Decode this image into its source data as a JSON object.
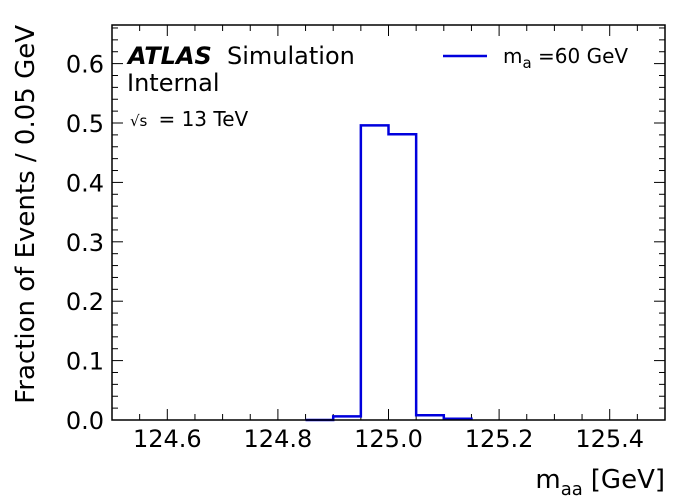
{
  "chart_data": {
    "type": "line",
    "drawstyle": "step",
    "title": "",
    "xlabel": "m",
    "xlabel_sub": "aa",
    "xlabel_unit": "[GeV]",
    "ylabel": "Fraction of Events / 0.05 GeV",
    "xlim": [
      124.5,
      125.5
    ],
    "ylim": [
      0,
      0.665
    ],
    "xticks": [
      124.6,
      124.8,
      125.0,
      125.2,
      125.4
    ],
    "xtick_labels": [
      "124.6",
      "124.8",
      "125.0",
      "125.2",
      "125.4"
    ],
    "yticks": [
      0,
      0.1,
      0.2,
      0.3,
      0.4,
      0.5,
      0.6
    ],
    "ytick_labels": [
      "0.0",
      "0.1",
      "0.2",
      "0.3",
      "0.4",
      "0.5",
      "0.6"
    ],
    "grid": false,
    "legend_position": "top-right",
    "series": [
      {
        "name": "m_a =60 GeV",
        "color": "#0000dd",
        "bin_edges": [
          124.5,
          124.55,
          124.6,
          124.65,
          124.7,
          124.75,
          124.8,
          124.85,
          124.9,
          124.95,
          125.0,
          125.05,
          125.1,
          125.15,
          125.2,
          125.25,
          125.3,
          125.35,
          125.4,
          125.45,
          125.5
        ],
        "values": [
          0,
          0,
          0,
          0,
          0,
          0,
          0,
          0,
          0.006,
          0.496,
          0.481,
          0.008,
          0.002,
          0,
          0,
          0,
          0,
          0,
          0,
          0
        ]
      }
    ]
  },
  "annotations": {
    "atlas": "ATLAS",
    "simulation": "Simulation",
    "internal": "Internal",
    "sqrt": "√s",
    "energy": "= 13 TeV"
  },
  "legend": {
    "label_main": "m",
    "label_sub": "a",
    "label_rest": " =60 GeV"
  }
}
